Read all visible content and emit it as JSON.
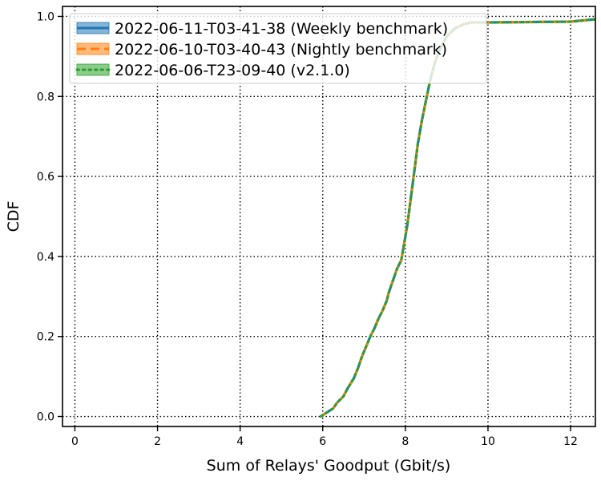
{
  "chart_data": {
    "type": "line",
    "title": "",
    "xlabel": "Sum of Relays' Goodput (Gbit/s)",
    "ylabel": "CDF",
    "xlim": [
      -0.3,
      12.6
    ],
    "ylim": [
      -0.025,
      1.025
    ],
    "x_ticks": [
      0,
      2,
      4,
      6,
      8,
      10,
      12
    ],
    "y_ticks": [
      0.0,
      0.2,
      0.4,
      0.6,
      0.8,
      1.0
    ],
    "grid": true,
    "legend_position": "top-left",
    "series": [
      {
        "name": "2022-06-11-T03-41-38 (Weekly benchmark)",
        "color": "#1f77b4",
        "style": "solid",
        "x": [
          5.95,
          6.1,
          6.25,
          6.35,
          6.5,
          6.6,
          6.75,
          6.85,
          6.95,
          7.05,
          7.15,
          7.25,
          7.35,
          7.45,
          7.55,
          7.6,
          7.7,
          7.8,
          7.9,
          7.95,
          8.0,
          8.05,
          8.1,
          8.15,
          8.2,
          8.25,
          8.3,
          8.35,
          8.4,
          8.5,
          8.6,
          8.7,
          8.8,
          9.0,
          9.2,
          9.4,
          9.6,
          10.0,
          11.0,
          12.0,
          12.3,
          12.6
        ],
        "y": [
          0.0,
          0.01,
          0.02,
          0.035,
          0.05,
          0.07,
          0.095,
          0.12,
          0.15,
          0.175,
          0.2,
          0.22,
          0.245,
          0.265,
          0.29,
          0.31,
          0.34,
          0.37,
          0.39,
          0.42,
          0.45,
          0.48,
          0.52,
          0.56,
          0.6,
          0.64,
          0.68,
          0.71,
          0.74,
          0.79,
          0.84,
          0.88,
          0.91,
          0.95,
          0.97,
          0.98,
          0.985,
          0.985,
          0.986,
          0.987,
          0.99,
          0.993
        ]
      },
      {
        "name": "2022-06-10-T03-40-43 (Nightly benchmark)",
        "color": "#ff7f0e",
        "style": "dashed",
        "x": [
          5.95,
          6.1,
          6.25,
          6.35,
          6.5,
          6.6,
          6.75,
          6.85,
          6.95,
          7.05,
          7.15,
          7.25,
          7.35,
          7.45,
          7.55,
          7.6,
          7.7,
          7.8,
          7.9,
          7.95,
          8.0,
          8.05,
          8.1,
          8.15,
          8.2,
          8.25,
          8.3,
          8.35,
          8.4,
          8.5,
          8.6,
          8.7,
          8.8,
          9.0,
          9.2,
          9.4,
          9.6,
          10.0,
          11.0,
          12.0,
          12.3,
          12.6
        ],
        "y": [
          0.0,
          0.01,
          0.02,
          0.035,
          0.05,
          0.07,
          0.095,
          0.12,
          0.15,
          0.175,
          0.2,
          0.22,
          0.245,
          0.265,
          0.29,
          0.31,
          0.34,
          0.37,
          0.39,
          0.42,
          0.45,
          0.48,
          0.52,
          0.56,
          0.6,
          0.64,
          0.68,
          0.71,
          0.74,
          0.79,
          0.84,
          0.88,
          0.91,
          0.95,
          0.97,
          0.98,
          0.985,
          0.985,
          0.986,
          0.987,
          0.99,
          0.993
        ]
      },
      {
        "name": "2022-06-06-T23-09-40 (v2.1.0)",
        "color": "#2ca02c",
        "style": "dotted",
        "x": [
          5.95,
          6.1,
          6.25,
          6.35,
          6.5,
          6.6,
          6.75,
          6.85,
          6.95,
          7.05,
          7.15,
          7.25,
          7.35,
          7.45,
          7.55,
          7.6,
          7.7,
          7.8,
          7.9,
          7.95,
          8.0,
          8.05,
          8.1,
          8.15,
          8.2,
          8.25,
          8.3,
          8.35,
          8.4,
          8.5,
          8.6,
          8.7,
          8.8,
          9.0,
          9.2,
          9.4,
          9.6,
          10.0,
          11.0,
          12.0,
          12.3,
          12.6
        ],
        "y": [
          0.0,
          0.01,
          0.02,
          0.035,
          0.05,
          0.07,
          0.095,
          0.12,
          0.15,
          0.175,
          0.2,
          0.22,
          0.245,
          0.265,
          0.29,
          0.31,
          0.34,
          0.37,
          0.39,
          0.42,
          0.45,
          0.48,
          0.52,
          0.56,
          0.6,
          0.64,
          0.68,
          0.71,
          0.74,
          0.79,
          0.84,
          0.88,
          0.91,
          0.95,
          0.97,
          0.98,
          0.985,
          0.985,
          0.986,
          0.987,
          0.99,
          0.993
        ]
      }
    ]
  }
}
